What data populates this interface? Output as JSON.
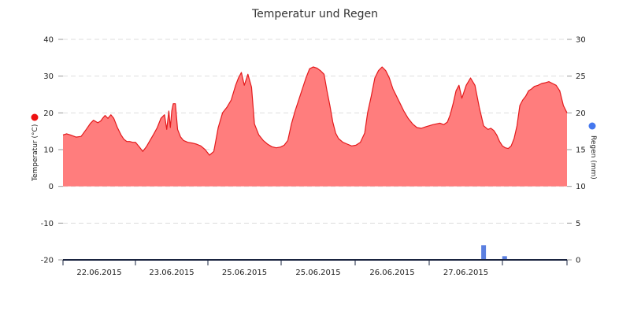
{
  "chart_data": {
    "type": "area",
    "title": "Temperatur und Regen",
    "x_labels": [
      "22.06.2015",
      "23.06.2015",
      "25.06.2015",
      "25.06.2015",
      "26.06.2015",
      "27.06.2015"
    ],
    "y_left": {
      "label": "Temperatur (°C)",
      "ylim": [
        -20,
        40
      ],
      "ticks": [
        "40",
        "30",
        "20",
        "10",
        "0",
        "-10",
        "-20"
      ]
    },
    "y_right": {
      "label": "Regen (mm)",
      "ylim": [
        0,
        30
      ],
      "ticks": [
        "30",
        "25",
        "20",
        "15",
        "10",
        "5",
        "0"
      ]
    },
    "grid": true,
    "series": [
      {
        "kind": "area",
        "axis": "left",
        "x": [
          0,
          0.05,
          0.1,
          0.18,
          0.25,
          0.32,
          0.38,
          0.42,
          0.48,
          0.52,
          0.55,
          0.58,
          0.62,
          0.66,
          0.7,
          0.75,
          0.8,
          0.84,
          0.88,
          0.92,
          0.96,
          1.0,
          1.05,
          1.1,
          1.15,
          1.2,
          1.25,
          1.3,
          1.35,
          1.4,
          1.43,
          1.46,
          1.48,
          1.5,
          1.52,
          1.55,
          1.58,
          1.62,
          1.66,
          1.72,
          1.78,
          1.84,
          1.9,
          1.96,
          2.02,
          2.08,
          2.14,
          2.2,
          2.26,
          2.32,
          2.38,
          2.42,
          2.46,
          2.5,
          2.55,
          2.6,
          2.64,
          2.7,
          2.76,
          2.82,
          2.88,
          2.94,
          3.0,
          3.05,
          3.1,
          3.15,
          3.2,
          3.25,
          3.3,
          3.35,
          3.4,
          3.45,
          3.5,
          3.55,
          3.6,
          3.64,
          3.68,
          3.72,
          3.76,
          3.8,
          3.86,
          3.92,
          3.98,
          4.04,
          4.1,
          4.16,
          4.2,
          4.25,
          4.3,
          4.35,
          4.4,
          4.45,
          4.5,
          4.55,
          4.6,
          4.65,
          4.7,
          4.76,
          4.82,
          4.88,
          4.94,
          5.0,
          5.05,
          5.1,
          5.15,
          5.2,
          5.25,
          5.3,
          5.34,
          5.38,
          5.42,
          5.46,
          5.5,
          5.56,
          5.62,
          5.68,
          5.74,
          5.8,
          5.86,
          5.9,
          5.94,
          5.98,
          6.02,
          6.06,
          6.1,
          6.14,
          6.18,
          6.22,
          6.26,
          6.3,
          6.34,
          6.38,
          6.42,
          6.46,
          6.5,
          6.55,
          6.6,
          6.65,
          6.7,
          6.75,
          6.8,
          6.85,
          6.9,
          6.95
        ],
        "y": [
          14,
          14.3,
          14,
          13.4,
          13.6,
          15.5,
          17.2,
          18,
          17.3,
          17.8,
          18.6,
          19.3,
          18.5,
          19.5,
          18.5,
          16,
          14,
          12.8,
          12.2,
          12.2,
          12,
          12,
          10.8,
          9.5,
          10.8,
          12.5,
          14.2,
          16,
          18.5,
          19.5,
          15.5,
          20.5,
          16,
          20.5,
          22.5,
          22.5,
          15.5,
          13.5,
          12.5,
          12,
          11.8,
          11.5,
          11,
          10,
          8.5,
          9.5,
          16,
          20,
          21.5,
          23.5,
          27.5,
          29.5,
          31,
          27.5,
          30.5,
          27,
          17,
          14,
          12.5,
          11.5,
          10.8,
          10.5,
          10.7,
          11.2,
          12.5,
          17,
          20.5,
          23.5,
          26.5,
          29.5,
          32,
          32.5,
          32.2,
          31.5,
          30.5,
          26,
          22,
          17.5,
          14.5,
          13,
          12,
          11.5,
          11,
          11.2,
          12,
          14.5,
          20,
          24.5,
          29.5,
          31.5,
          32.5,
          31.5,
          29.5,
          26.5,
          24.5,
          22.5,
          20.5,
          18.5,
          17,
          16,
          15.8,
          16.2,
          16.5,
          16.8,
          17,
          17.2,
          16.8,
          17.5,
          19.5,
          22.5,
          26,
          27.5,
          24,
          27.5,
          29.5,
          27.5,
          21.5,
          16.5,
          15.5,
          15.8,
          15.2,
          14,
          12.2,
          11,
          10.5,
          10.3,
          11,
          13,
          16.5,
          22,
          23.5,
          24.5,
          26,
          26.5,
          27.2,
          27.5,
          28,
          28.2,
          28.5,
          28,
          27.5,
          26,
          22,
          20
        ]
      },
      {
        "kind": "bar",
        "axis": "right",
        "x": [
          5.8,
          6.09
        ],
        "values": [
          2,
          0.5
        ]
      }
    ],
    "colors": {
      "area_fill": "#ff7d7d",
      "area_line": "#e31a1c",
      "bars": "#5b7fe0",
      "temp_dot": "#ee1111",
      "rain_dot": "#4477ee",
      "grid": "#dddddd",
      "axis": "#1a2440"
    }
  }
}
